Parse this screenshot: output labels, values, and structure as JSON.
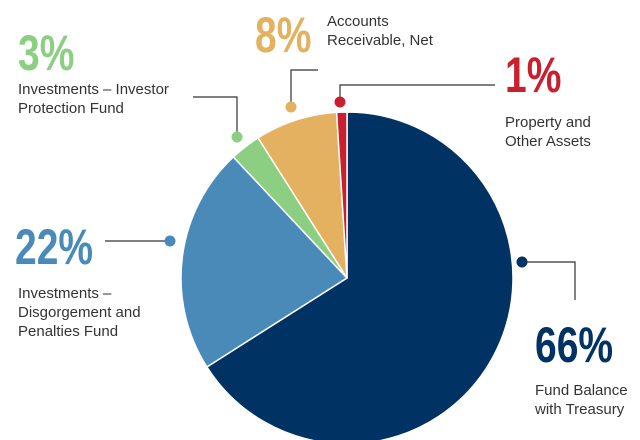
{
  "chart_data": {
    "type": "pie",
    "categories": [
      "Fund Balance with Treasury",
      "Investments – Disgorgement and Penalties Fund",
      "Investments – Investor Protection Fund",
      "Accounts Receivable, Net",
      "Property and Other Assets"
    ],
    "values": [
      66,
      22,
      3,
      8,
      1
    ],
    "value_labels": [
      "66%",
      "22%",
      "3%",
      "8%",
      "1%"
    ],
    "colors": [
      "#003263",
      "#4a8ab8",
      "#8ccf82",
      "#e3b15f",
      "#c8202f"
    ]
  }
}
